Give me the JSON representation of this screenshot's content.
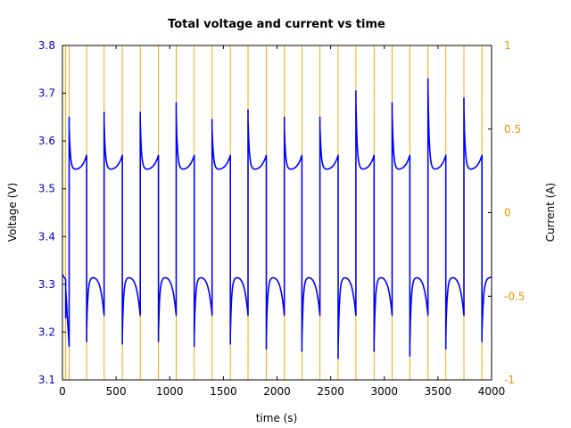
{
  "chart_data": {
    "type": "line",
    "title": "Total voltage and current vs time",
    "xlabel": "time (s)",
    "ylabel": "Voltage (V)",
    "y2label": "Current (A)",
    "xlim": [
      0,
      4000
    ],
    "ylim": [
      3.1,
      3.8
    ],
    "y2lim": [
      -1,
      1
    ],
    "grid": false,
    "legend": "none",
    "x_ticks": [
      "0",
      "500",
      "1000",
      "1500",
      "2000",
      "2500",
      "3000",
      "3500",
      "4000"
    ],
    "y_ticks": [
      "3.1",
      "3.2",
      "3.3",
      "3.4",
      "3.5",
      "3.6",
      "3.7",
      "3.8"
    ],
    "y2_ticks": [
      "-1",
      "-0.5",
      "0",
      "0.5",
      "1"
    ],
    "colors": {
      "voltage": "#0000ff",
      "current": "#ffa500",
      "left_axis_text": "#0000cc",
      "right_axis_text": "#e69500"
    },
    "pulse_times": [
      30,
      62,
      225,
      388,
      558,
      725,
      895,
      1060,
      1228,
      1395,
      1565,
      1730,
      1900,
      2068,
      2232,
      2400,
      2570,
      2735,
      2905,
      3073,
      3238,
      3407,
      3573,
      3742,
      3910
    ],
    "voltage_series": {
      "name": "",
      "peaks_after_discharge": [
        3.65,
        3.69,
        3.66,
        3.7,
        3.66,
        3.69,
        3.68,
        3.715,
        3.645,
        3.695,
        3.665,
        3.71,
        3.65,
        3.695,
        3.65,
        3.68,
        3.705,
        3.68,
        3.68,
        3.675,
        3.73,
        3.65,
        3.69
      ],
      "troughs_after_charge": [
        3.165,
        3.18,
        3.175,
        3.175,
        3.17,
        3.18,
        3.15,
        3.17,
        3.165,
        3.175,
        3.165,
        3.165,
        3.16,
        3.16,
        3.195,
        3.145,
        3.16,
        3.16,
        3.185,
        3.15,
        3.16,
        3.165,
        3.18
      ],
      "charge_plateau": 3.54,
      "discharge_plateau": 3.315
    },
    "current_series": {
      "name": "",
      "pulse_current": 1.0,
      "baseline": -1.0
    }
  }
}
